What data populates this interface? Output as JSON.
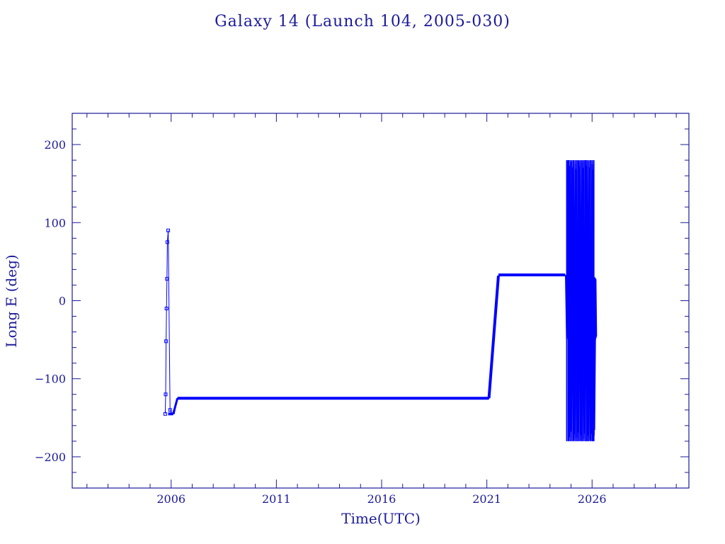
{
  "colors": {
    "axis": "#1a1a9a",
    "data": "#0000ff",
    "background": "#ffffff"
  },
  "chart_data": {
    "type": "line",
    "title": "Galaxy 14 (Launch 104, 2005-030)",
    "xlabel": "Time(UTC)",
    "ylabel": "Long E (deg)",
    "xlim": [
      2001.3,
      2030.6
    ],
    "ylim": [
      -240,
      240
    ],
    "xticks_major": [
      2006,
      2011,
      2016,
      2021,
      2026
    ],
    "xtick_labels": [
      "2006",
      "2011",
      "2016",
      "2021",
      "2026"
    ],
    "yticks_major": [
      -200,
      -100,
      0,
      100,
      200
    ],
    "ytick_labels": [
      "−200",
      "−100",
      "0",
      "100",
      "200"
    ],
    "grid": false,
    "legend": "none",
    "series": [
      {
        "x": [
          2005.72,
          2005.74,
          2005.76,
          2005.78,
          2005.8,
          2005.82,
          2005.86,
          2005.95,
          2006.05,
          2006.15,
          2006.3,
          2008.0,
          2011.0,
          2014.0,
          2017.0,
          2020.0,
          2021.1,
          2021.55,
          2022.0,
          2023.0,
          2024.0,
          2024.72
        ],
        "y": [
          -145,
          -120,
          -52,
          -10,
          28,
          75,
          90,
          -140,
          -145,
          -145,
          -125,
          -125,
          -125,
          -125,
          -125,
          -125,
          -125,
          32,
          33,
          33,
          33,
          33
        ]
      }
    ],
    "oscillation_region": {
      "x_range": [
        2024.75,
        2026.15
      ],
      "y_range": [
        -180,
        180
      ],
      "description_points": [
        [
          2024.75,
          33
        ],
        [
          2024.8,
          -50
        ],
        [
          2024.87,
          180
        ],
        [
          2024.95,
          -175
        ],
        [
          2025.03,
          178
        ],
        [
          2025.12,
          -178
        ],
        [
          2025.2,
          176
        ],
        [
          2025.28,
          -176
        ],
        [
          2025.36,
          179
        ],
        [
          2025.44,
          -179
        ],
        [
          2025.52,
          177
        ],
        [
          2025.6,
          -177
        ],
        [
          2025.68,
          180
        ],
        [
          2025.76,
          -180
        ],
        [
          2025.84,
          178
        ],
        [
          2025.92,
          -178
        ],
        [
          2026.0,
          175
        ],
        [
          2026.06,
          -180
        ],
        [
          2026.12,
          30
        ],
        [
          2026.15,
          -50
        ]
      ]
    }
  }
}
